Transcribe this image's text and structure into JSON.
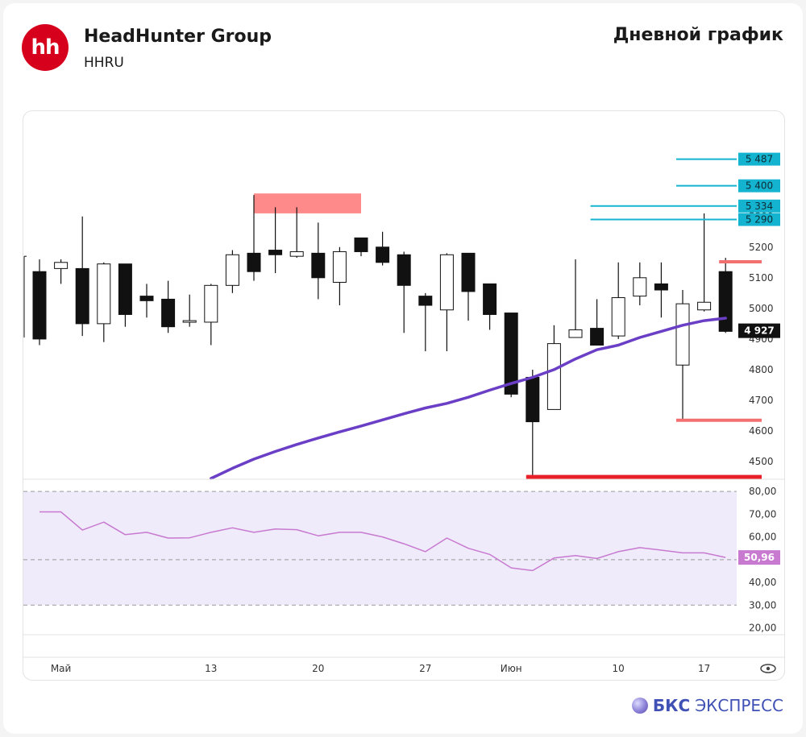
{
  "header": {
    "logo_text": "hh",
    "company": "HeadHunter Group",
    "ticker": "HHRU",
    "chart_title": "Дневной график"
  },
  "brand": {
    "bold": "БКС",
    "rest": "ЭКСПРЕСС"
  },
  "colors": {
    "logo": "#d6001c",
    "ma": "#6a3fc6",
    "rsi": "#c77ad0",
    "rsi_band": "#f0ebfb",
    "level_cyan": "#14b4d0",
    "level_red": "#e8202a",
    "level_pink": "#f27070",
    "zone": "#ff8a8a"
  },
  "chart_data": [
    {
      "type": "candlestick",
      "x_ticks": [
        {
          "label": "Май",
          "index": 1
        },
        {
          "label": "13",
          "index": 8
        },
        {
          "label": "20",
          "index": 13
        },
        {
          "label": "27",
          "index": 18
        },
        {
          "label": "Июн",
          "index": 22
        },
        {
          "label": "10",
          "index": 27
        },
        {
          "label": "17",
          "index": 31
        }
      ],
      "y_ticks": [
        4500,
        4600,
        4700,
        4800,
        4900,
        5000,
        5100,
        5200,
        5300
      ],
      "ylim": [
        4445,
        5570
      ],
      "candles": [
        {
          "o": 5120,
          "h": 5160,
          "l": 4880,
          "c": 4900
        },
        {
          "o": 5130,
          "h": 5160,
          "l": 5080,
          "c": 5150
        },
        {
          "o": 5130,
          "h": 5300,
          "l": 4910,
          "c": 4950
        },
        {
          "o": 4950,
          "h": 5150,
          "l": 4890,
          "c": 5145
        },
        {
          "o": 5145,
          "h": 5145,
          "l": 4940,
          "c": 4980
        },
        {
          "o": 5040,
          "h": 5080,
          "l": 4970,
          "c": 5025
        },
        {
          "o": 5030,
          "h": 5090,
          "l": 4920,
          "c": 4940
        },
        {
          "o": 4960,
          "h": 5045,
          "l": 4940,
          "c": 4960
        },
        {
          "o": 4955,
          "h": 5080,
          "l": 4880,
          "c": 5075
        },
        {
          "o": 5075,
          "h": 5190,
          "l": 5050,
          "c": 5175
        },
        {
          "o": 5180,
          "h": 5370,
          "l": 5090,
          "c": 5120
        },
        {
          "o": 5190,
          "h": 5330,
          "l": 5115,
          "c": 5175
        },
        {
          "o": 5170,
          "h": 5330,
          "l": 5165,
          "c": 5185
        },
        {
          "o": 5180,
          "h": 5280,
          "l": 5030,
          "c": 5100
        },
        {
          "o": 5085,
          "h": 5200,
          "l": 5010,
          "c": 5185
        },
        {
          "o": 5230,
          "h": 5230,
          "l": 5170,
          "c": 5185
        },
        {
          "o": 5200,
          "h": 5250,
          "l": 5140,
          "c": 5150
        },
        {
          "o": 5175,
          "h": 5185,
          "l": 4920,
          "c": 5075
        },
        {
          "o": 5040,
          "h": 5050,
          "l": 4860,
          "c": 5010
        },
        {
          "o": 4995,
          "h": 5180,
          "l": 4860,
          "c": 5175
        },
        {
          "o": 5180,
          "h": 5180,
          "l": 4960,
          "c": 5055
        },
        {
          "o": 5080,
          "h": 5080,
          "l": 4930,
          "c": 4980
        },
        {
          "o": 4985,
          "h": 4985,
          "l": 4710,
          "c": 4720
        },
        {
          "o": 4775,
          "h": 4800,
          "l": 4450,
          "c": 4630
        },
        {
          "o": 4670,
          "h": 4945,
          "l": 4670,
          "c": 4885
        },
        {
          "o": 4905,
          "h": 5160,
          "l": 4905,
          "c": 4930
        },
        {
          "o": 4935,
          "h": 5030,
          "l": 4880,
          "c": 4880
        },
        {
          "o": 4910,
          "h": 5150,
          "l": 4900,
          "c": 5035
        },
        {
          "o": 5040,
          "h": 5150,
          "l": 5010,
          "c": 5100
        },
        {
          "o": 5080,
          "h": 5150,
          "l": 4970,
          "c": 5060
        },
        {
          "o": 4815,
          "h": 5060,
          "l": 4635,
          "c": 5015
        },
        {
          "o": 4995,
          "h": 5310,
          "l": 4990,
          "c": 5020
        },
        {
          "o": 5120,
          "h": 5165,
          "l": 4920,
          "c": 4925
        }
      ],
      "moving_average": [
        {
          "i": 8,
          "v": 4445
        },
        {
          "i": 9,
          "v": 4478
        },
        {
          "i": 10,
          "v": 4508
        },
        {
          "i": 11,
          "v": 4533
        },
        {
          "i": 12,
          "v": 4556
        },
        {
          "i": 13,
          "v": 4577
        },
        {
          "i": 14,
          "v": 4597
        },
        {
          "i": 15,
          "v": 4616
        },
        {
          "i": 16,
          "v": 4636
        },
        {
          "i": 17,
          "v": 4656
        },
        {
          "i": 18,
          "v": 4675
        },
        {
          "i": 19,
          "v": 4690
        },
        {
          "i": 20,
          "v": 4710
        },
        {
          "i": 21,
          "v": 4733
        },
        {
          "i": 22,
          "v": 4755
        },
        {
          "i": 23,
          "v": 4775
        },
        {
          "i": 24,
          "v": 4800
        },
        {
          "i": 25,
          "v": 4835
        },
        {
          "i": 26,
          "v": 4865
        },
        {
          "i": 27,
          "v": 4880
        },
        {
          "i": 28,
          "v": 4905
        },
        {
          "i": 29,
          "v": 4925
        },
        {
          "i": 30,
          "v": 4945
        },
        {
          "i": 31,
          "v": 4960
        },
        {
          "i": 32,
          "v": 4968
        }
      ],
      "resistance_zone": {
        "from_index": 10,
        "to_index": 15,
        "low": 5310,
        "high": 5375
      },
      "levels": [
        {
          "value": 5487,
          "label": "5 487",
          "from_index": 30,
          "color": "cyan"
        },
        {
          "value": 5400,
          "label": "5 400",
          "from_index": 30,
          "color": "cyan"
        },
        {
          "value": 5334,
          "label": "5 334",
          "from_index": 26,
          "color": "cyan"
        },
        {
          "value": 5290,
          "label": "5 290",
          "from_index": 26,
          "color": "cyan"
        },
        {
          "value": 5152,
          "label": "",
          "from_index": 32,
          "color": "pink"
        },
        {
          "value": 4635,
          "label": "",
          "from_index": 30,
          "color": "pink"
        },
        {
          "value": 4450,
          "label": "",
          "from_index": 23,
          "color": "red"
        }
      ],
      "last_price": {
        "value": 4927,
        "label": "4 927"
      }
    },
    {
      "type": "line",
      "name": "RSI",
      "ylim": [
        17,
        85
      ],
      "y_ticks": [
        {
          "value": 80,
          "label": "80,00"
        },
        {
          "value": 70,
          "label": "70,00"
        },
        {
          "value": 60,
          "label": "60,00"
        },
        {
          "value": 50,
          "label": "50,00"
        },
        {
          "value": 40,
          "label": "40,00"
        },
        {
          "value": 30,
          "label": "30,00"
        },
        {
          "value": 20,
          "label": "20,00"
        }
      ],
      "band": [
        30,
        80
      ],
      "midline": 50,
      "values": [
        71,
        71,
        63,
        66.5,
        61,
        62,
        59.5,
        59.6,
        62,
        64,
        62,
        63.5,
        63.2,
        60.5,
        62,
        62,
        60,
        57,
        53.5,
        59.5,
        55,
        52.3,
        46.4,
        45.2,
        50.7,
        51.8,
        50.5,
        53.5,
        55.3,
        54.2,
        53,
        53,
        50.96
      ],
      "last": {
        "value": 50.96,
        "label": "50,96"
      }
    }
  ]
}
